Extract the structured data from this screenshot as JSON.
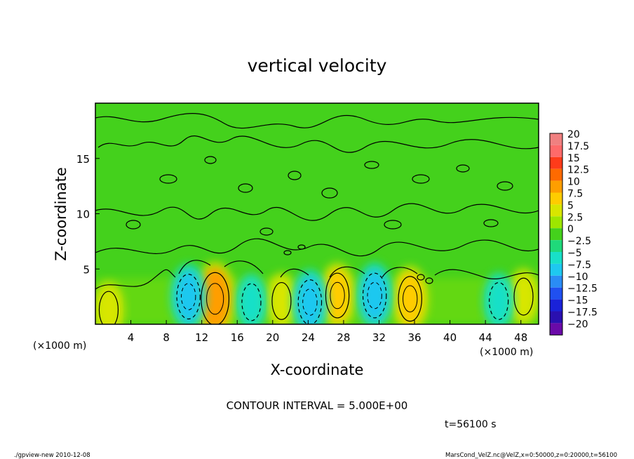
{
  "chart_data": {
    "type": "heatmap",
    "title": "vertical velocity",
    "xlabel": "X-coordinate",
    "ylabel": "Z-coordinate",
    "x_unit": "(×1000 m)",
    "y_unit": "(×1000 m)",
    "xlim": [
      0,
      50
    ],
    "ylim": [
      0,
      20
    ],
    "x_ticks": [
      "4",
      "8",
      "12",
      "16",
      "20",
      "24",
      "28",
      "32",
      "36",
      "40",
      "44",
      "48"
    ],
    "y_ticks": [
      "5",
      "10",
      "15"
    ],
    "colorbar": {
      "labels": [
        "20",
        "17.5",
        "15",
        "12.5",
        "10",
        "7.5",
        "5",
        "2.5",
        "0",
        "−2.5",
        "−5",
        "−7.5",
        "−10",
        "−12.5",
        "−15",
        "−17.5",
        "−20"
      ],
      "values": [
        20,
        17.5,
        15,
        12.5,
        10,
        7.5,
        5,
        2.5,
        0,
        -2.5,
        -5,
        -7.5,
        -10,
        -12.5,
        -15,
        -17.5,
        -20
      ],
      "colors": [
        "#f08080",
        "#ff6a6a",
        "#ff3b1a",
        "#ff6a00",
        "#ff9e00",
        "#ffcc00",
        "#d8e600",
        "#9ee600",
        "#44d11c",
        "#1fd97a",
        "#18e0c8",
        "#1ec8f0",
        "#2a8cf5",
        "#2050f0",
        "#1a22d8",
        "#2a10b0",
        "#6a0aa8"
      ]
    },
    "features": [
      {
        "x": 13.5,
        "z": 2.3,
        "value": 10,
        "kind": "updraft"
      },
      {
        "x": 27.3,
        "z": 2.6,
        "value": 7.5,
        "kind": "updraft"
      },
      {
        "x": 35.5,
        "z": 2.3,
        "value": 7.5,
        "kind": "updraft"
      },
      {
        "x": 48.3,
        "z": 2.5,
        "value": 5,
        "kind": "updraft"
      },
      {
        "x": 21,
        "z": 2.1,
        "value": 5,
        "kind": "updraft"
      },
      {
        "x": 1.5,
        "z": 1.3,
        "value": 5,
        "kind": "updraft"
      },
      {
        "x": 10.5,
        "z": 2.5,
        "value": -7.5,
        "kind": "downdraft"
      },
      {
        "x": 17.6,
        "z": 2.0,
        "value": -5,
        "kind": "downdraft"
      },
      {
        "x": 24.2,
        "z": 2.0,
        "value": -7.5,
        "kind": "downdraft"
      },
      {
        "x": 31.5,
        "z": 2.6,
        "value": -7.5,
        "kind": "downdraft"
      },
      {
        "x": 45.5,
        "z": 2.1,
        "value": -5,
        "kind": "downdraft"
      }
    ]
  },
  "annotations": {
    "contour_interval": "CONTOUR INTERVAL = 5.000E+00",
    "time": "t=56100 s",
    "footer_left": "./gpview-new  2010-12-08",
    "footer_right": "MarsCond_VelZ.nc@VelZ,x=0:50000,z=0:20000,t=56100"
  }
}
